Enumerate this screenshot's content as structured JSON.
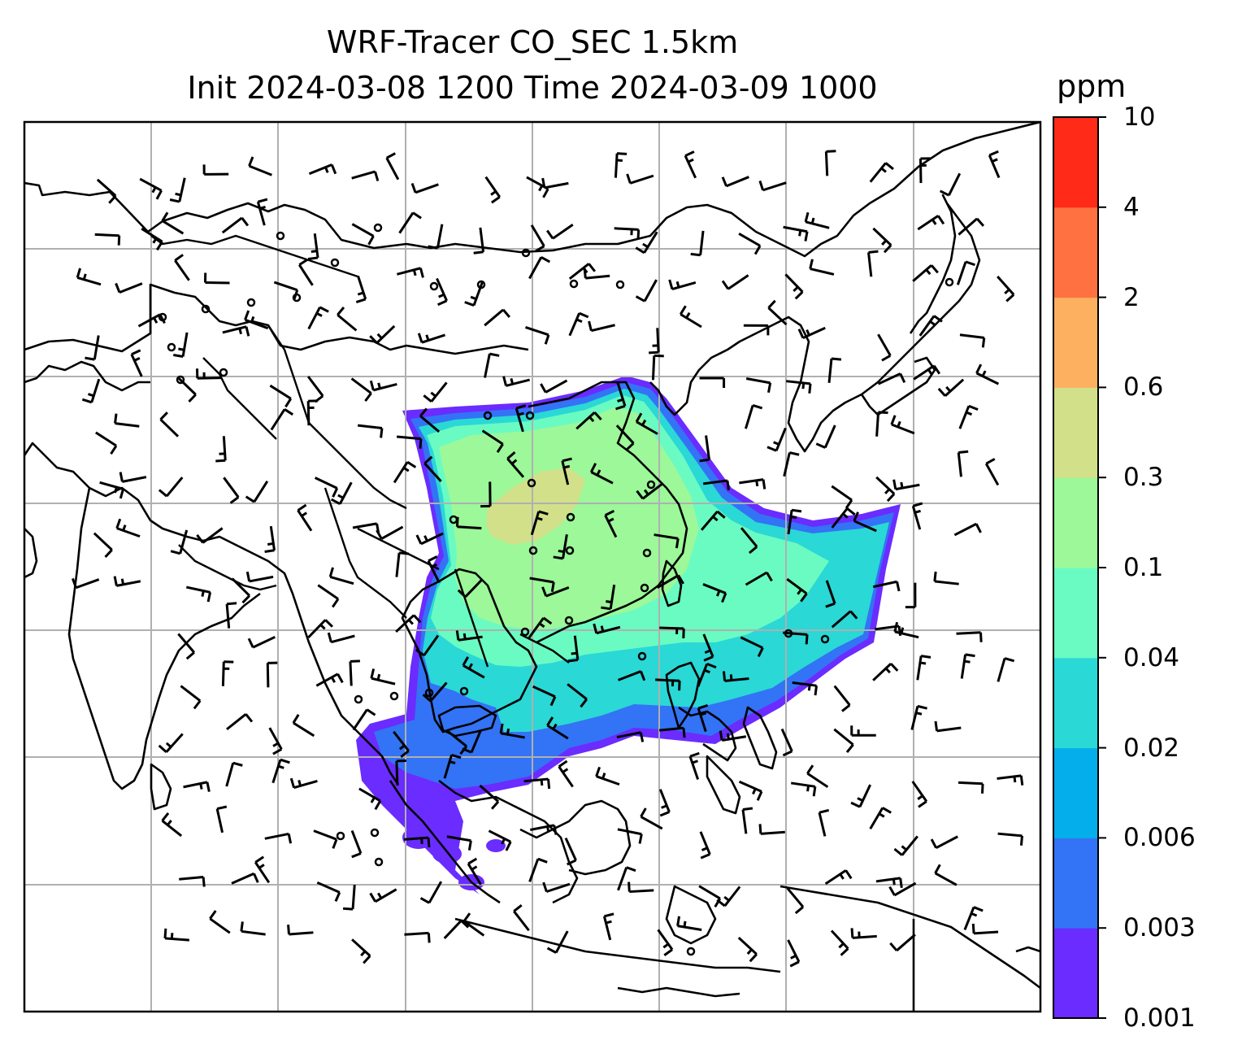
{
  "chart_data": {
    "type": "heatmap",
    "title": "WRF-Tracer CO_SEC 1.5km",
    "subtitle": "Init 2024-03-08 1200 Time 2024-03-09 1000",
    "colorbar": {
      "unit": "ppm",
      "levels": [
        "0.001",
        "0.003",
        "0.006",
        "0.02",
        "0.04",
        "0.1",
        "0.3",
        "0.6",
        "2",
        "4",
        "10"
      ],
      "colors": [
        "#6a2cff",
        "#3373f5",
        "#04aeea",
        "#2ad8d6",
        "#6afbc2",
        "#9cf898",
        "#d2e08a",
        "#fdb060",
        "#ff7140",
        "#ff2a17"
      ]
    },
    "grid": true,
    "map": {
      "region": "South / East / Southeast Asia",
      "coastlines": true,
      "country_borders": true,
      "wind_barbs": true
    },
    "plume": {
      "description_colors": {
        "outer": "#6a2cff",
        "core": "#9cf898"
      }
    }
  }
}
